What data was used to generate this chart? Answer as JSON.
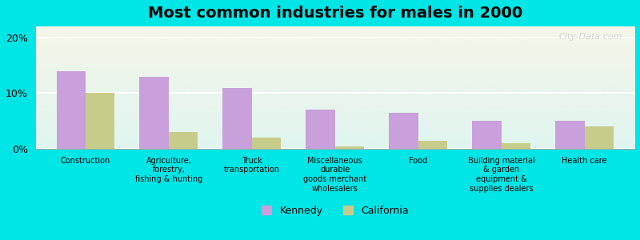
{
  "title": "Most common industries for males in 2000",
  "categories": [
    "Construction",
    "Agriculture,\nforestry,\nfishing & hunting",
    "Truck\ntransportation",
    "Miscellaneous\ndurable\ngoods merchant\nwholesalers",
    "Food",
    "Building material\n& garden\nequipment &\nsupplies dealers",
    "Health care"
  ],
  "kennedy_values": [
    14.0,
    13.0,
    11.0,
    7.0,
    6.5,
    5.0,
    5.0
  ],
  "california_values": [
    10.0,
    3.0,
    2.0,
    0.5,
    1.5,
    1.0,
    4.0
  ],
  "kennedy_color": "#c9a0dc",
  "california_color": "#c8cc8a",
  "background_color": "#00e5e5",
  "plot_bg_top": "#f5f5e8",
  "plot_bg_bottom": "#e0f5f5",
  "ylim": [
    0,
    22
  ],
  "yticks": [
    0,
    10,
    20
  ],
  "ytick_labels": [
    "0%",
    "10%",
    "20%"
  ],
  "bar_width": 0.35,
  "title_fontsize": 14,
  "label_fontsize": 7,
  "legend_kennedy": "Kennedy",
  "legend_california": "California"
}
